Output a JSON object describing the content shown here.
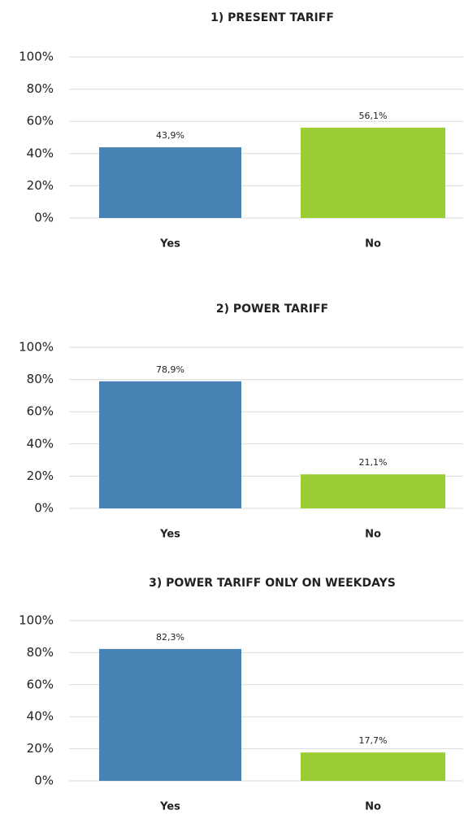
{
  "chart_data": [
    {
      "type": "bar",
      "title": "1) PRESENT TARIFF",
      "categories": [
        "Yes",
        "No"
      ],
      "values": [
        43.9,
        56.1
      ],
      "value_labels": [
        "43,9%",
        "56,1%"
      ],
      "colors": [
        "#4682b4",
        "#9acd32"
      ],
      "ylim": [
        0,
        100
      ],
      "yticks": [
        {
          "value": 0,
          "label": "0%"
        },
        {
          "value": 20,
          "label": "20%"
        },
        {
          "value": 40,
          "label": "40%"
        },
        {
          "value": 60,
          "label": "60%"
        },
        {
          "value": 80,
          "label": "80%"
        },
        {
          "value": 100,
          "label": "100%"
        }
      ],
      "grid": true
    },
    {
      "type": "bar",
      "title": "2) POWER TARIFF",
      "categories": [
        "Yes",
        "No"
      ],
      "values": [
        78.9,
        21.1
      ],
      "value_labels": [
        "78,9%",
        "21,1%"
      ],
      "colors": [
        "#4682b4",
        "#9acd32"
      ],
      "ylim": [
        0,
        100
      ],
      "yticks": [
        {
          "value": 0,
          "label": "0%"
        },
        {
          "value": 20,
          "label": "20%"
        },
        {
          "value": 40,
          "label": "40%"
        },
        {
          "value": 60,
          "label": "60%"
        },
        {
          "value": 80,
          "label": "80%"
        },
        {
          "value": 100,
          "label": "100%"
        }
      ],
      "grid": true
    },
    {
      "type": "bar",
      "title": "3) POWER TARIFF ONLY ON WEEKDAYS",
      "categories": [
        "Yes",
        "No"
      ],
      "values": [
        82.3,
        17.7
      ],
      "value_labels": [
        "82,3%",
        "17,7%"
      ],
      "colors": [
        "#4682b4",
        "#9acd32"
      ],
      "ylim": [
        0,
        100
      ],
      "yticks": [
        {
          "value": 0,
          "label": "0%"
        },
        {
          "value": 20,
          "label": "20%"
        },
        {
          "value": 40,
          "label": "40%"
        },
        {
          "value": 60,
          "label": "60%"
        },
        {
          "value": 80,
          "label": "80%"
        },
        {
          "value": 100,
          "label": "100%"
        }
      ],
      "grid": true
    }
  ]
}
